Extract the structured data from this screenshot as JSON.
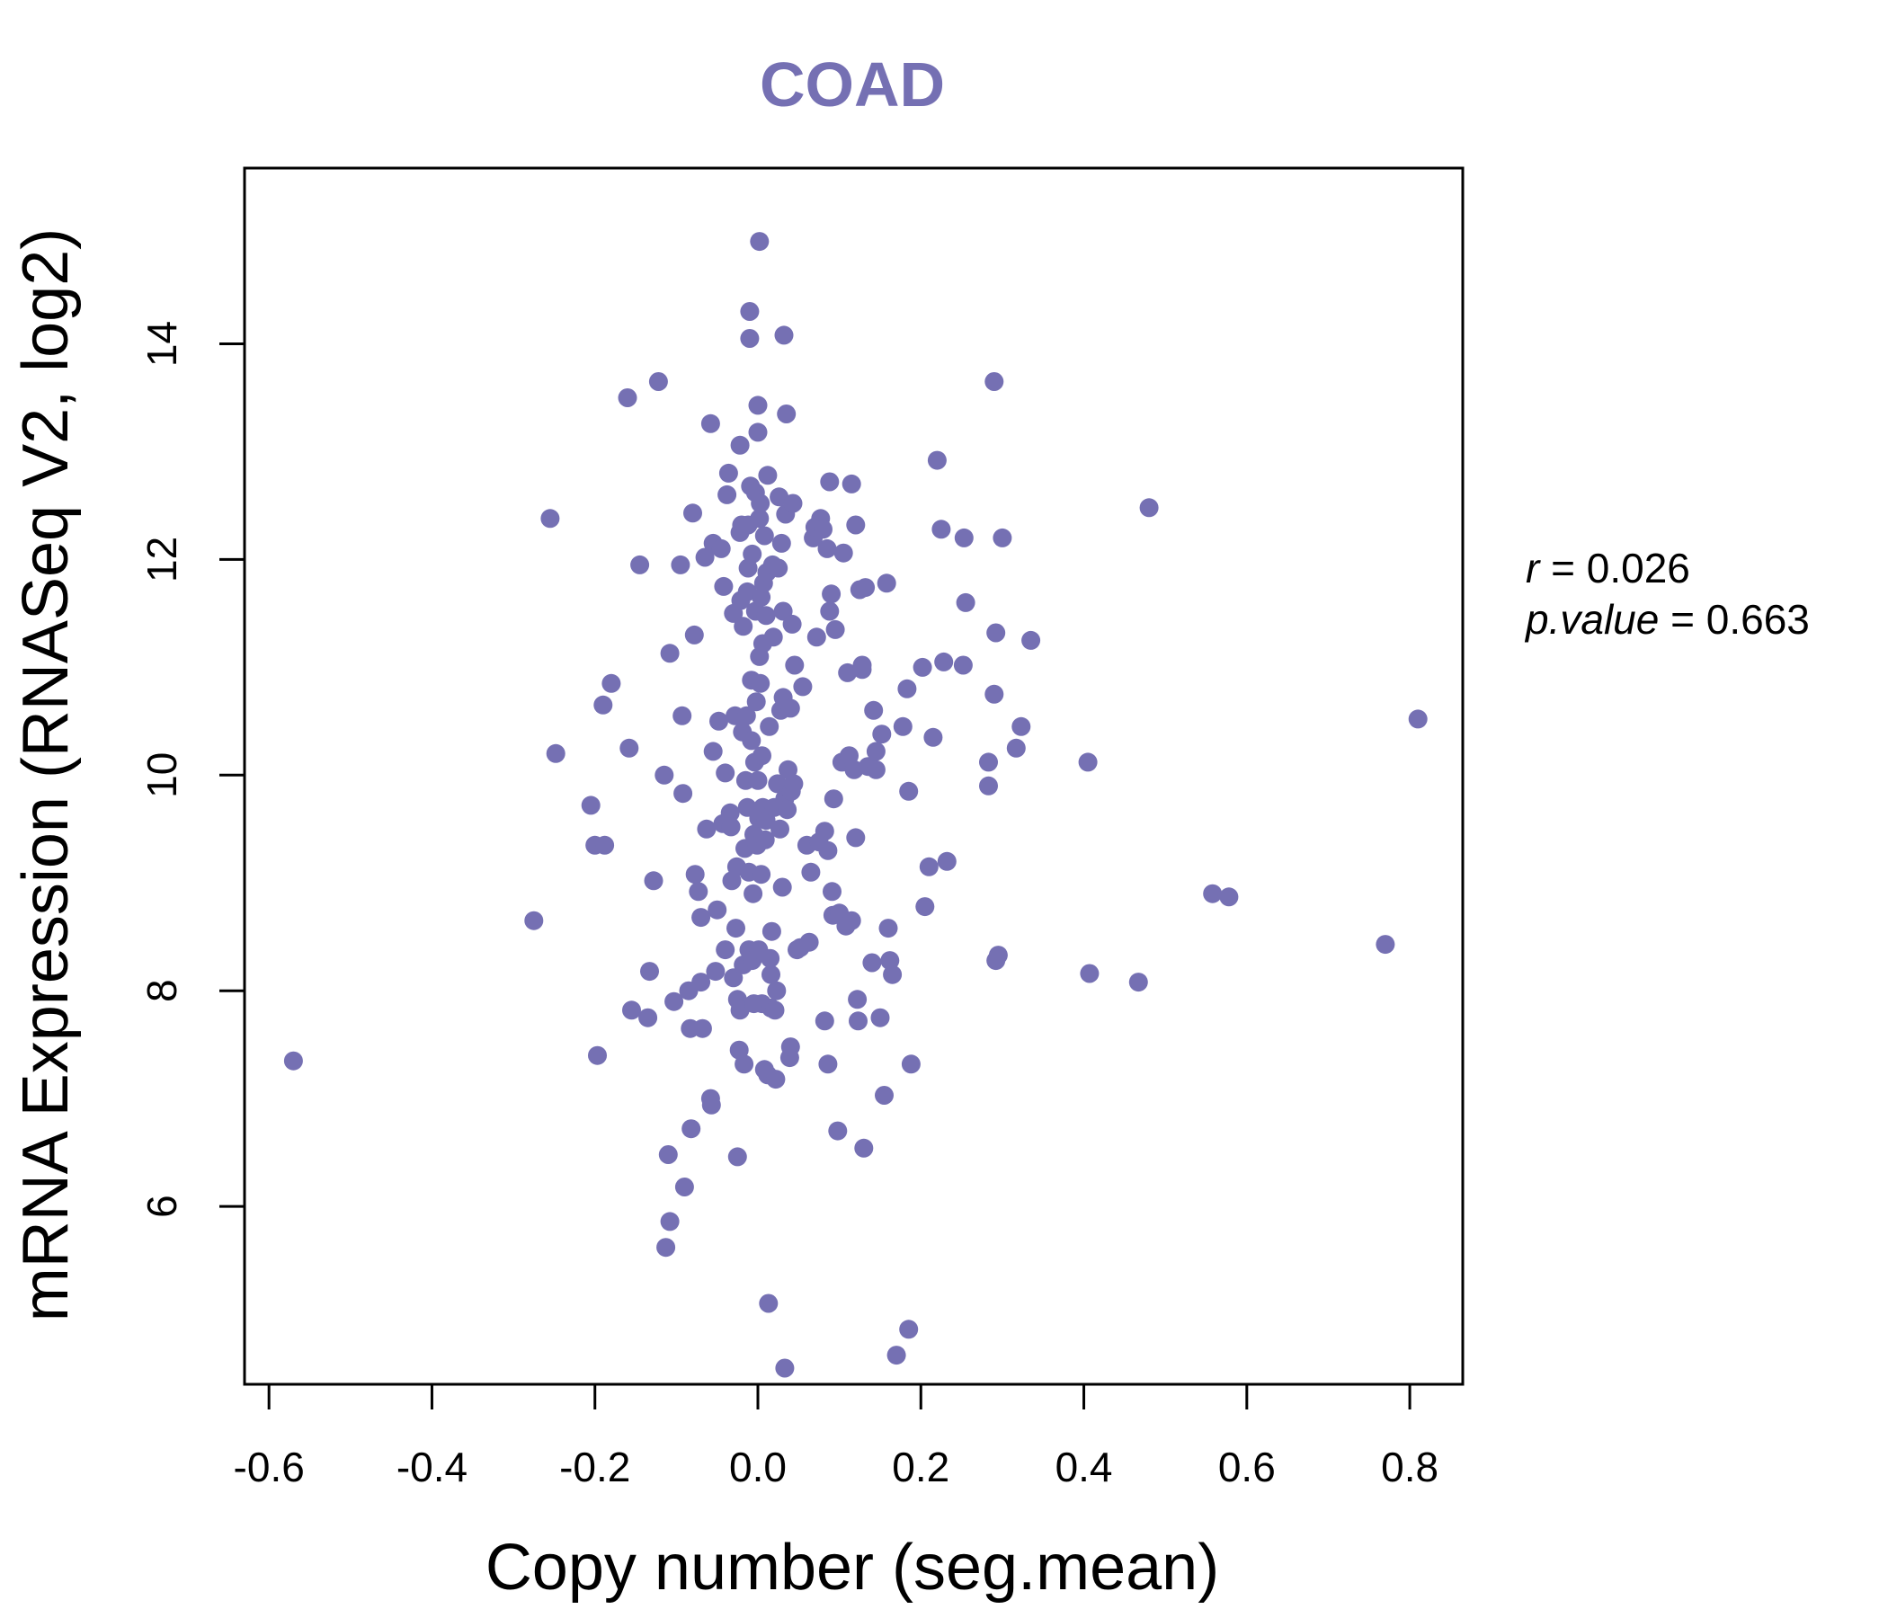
{
  "chart_data": {
    "type": "scatter",
    "title": "COAD",
    "xlabel": "Copy number (seg.mean)",
    "ylabel": "mRNA Expression (RNASeq V2, log2)",
    "xlim": [
      -0.63,
      0.865
    ],
    "ylim": [
      4.35,
      15.63
    ],
    "xticks": [
      -0.6,
      -0.4,
      -0.2,
      0.0,
      0.2,
      0.4,
      0.6,
      0.8
    ],
    "xtick_labels": [
      "-0.6",
      "-0.4",
      "-0.2",
      "0.0",
      "0.2",
      "0.4",
      "0.6",
      "0.8"
    ],
    "yticks": [
      6,
      8,
      10,
      12,
      14
    ],
    "ytick_labels": [
      "6",
      "8",
      "10",
      "12",
      "14"
    ],
    "grid": false,
    "colors": {
      "points": "#7570B3",
      "title": "#7570B3",
      "axis": "#000000"
    },
    "annotations": [
      {
        "label": "r",
        "text": " = 0.026"
      },
      {
        "label": "p.value",
        "text": " = 0.663"
      }
    ],
    "series": [
      {
        "points": [
          [
            -0.57,
            7.35
          ],
          [
            -0.275,
            8.65
          ],
          [
            -0.255,
            12.38
          ],
          [
            -0.248,
            10.2
          ],
          [
            -0.205,
            9.72
          ],
          [
            -0.2,
            9.35
          ],
          [
            -0.197,
            7.4
          ],
          [
            -0.19,
            10.65
          ],
          [
            -0.188,
            9.35
          ],
          [
            -0.18,
            10.85
          ],
          [
            -0.16,
            13.5
          ],
          [
            -0.158,
            10.25
          ],
          [
            -0.155,
            7.82
          ],
          [
            -0.145,
            11.95
          ],
          [
            -0.135,
            7.75
          ],
          [
            -0.133,
            8.18
          ],
          [
            -0.128,
            9.02
          ],
          [
            -0.122,
            13.65
          ],
          [
            -0.115,
            10.0
          ],
          [
            -0.113,
            5.62
          ],
          [
            -0.11,
            6.48
          ],
          [
            -0.108,
            5.86
          ],
          [
            -0.108,
            11.13
          ],
          [
            -0.103,
            7.9
          ],
          [
            -0.095,
            11.95
          ],
          [
            -0.093,
            10.55
          ],
          [
            -0.092,
            9.83
          ],
          [
            -0.09,
            6.18
          ],
          [
            -0.085,
            8.0
          ],
          [
            -0.083,
            7.65
          ],
          [
            -0.082,
            6.72
          ],
          [
            -0.08,
            12.43
          ],
          [
            -0.078,
            11.3
          ],
          [
            -0.077,
            9.08
          ],
          [
            -0.073,
            8.92
          ],
          [
            -0.07,
            8.08
          ],
          [
            -0.07,
            8.68
          ],
          [
            -0.068,
            7.65
          ],
          [
            -0.065,
            12.02
          ],
          [
            -0.063,
            9.5
          ],
          [
            -0.058,
            13.26
          ],
          [
            -0.058,
            7.0
          ],
          [
            -0.057,
            6.94
          ],
          [
            -0.055,
            10.22
          ],
          [
            -0.055,
            12.15
          ],
          [
            -0.052,
            8.18
          ],
          [
            -0.05,
            8.75
          ],
          [
            -0.048,
            10.5
          ],
          [
            -0.045,
            12.1
          ],
          [
            -0.043,
            9.55
          ],
          [
            -0.042,
            11.75
          ],
          [
            -0.04,
            8.38
          ],
          [
            -0.04,
            10.02
          ],
          [
            -0.038,
            12.6
          ],
          [
            -0.036,
            12.8
          ],
          [
            -0.034,
            9.65
          ],
          [
            -0.033,
            9.52
          ],
          [
            -0.032,
            9.02
          ],
          [
            -0.03,
            8.12
          ],
          [
            -0.03,
            11.5
          ],
          [
            -0.028,
            10.55
          ],
          [
            -0.027,
            8.58
          ],
          [
            -0.026,
            9.15
          ],
          [
            -0.025,
            7.92
          ],
          [
            -0.025,
            6.46
          ],
          [
            -0.023,
            7.45
          ],
          [
            -0.022,
            7.82
          ],
          [
            -0.022,
            13.06
          ],
          [
            -0.022,
            12.25
          ],
          [
            -0.021,
            11.62
          ],
          [
            -0.02,
            12.32
          ],
          [
            -0.019,
            10.4
          ],
          [
            -0.018,
            11.38
          ],
          [
            -0.018,
            8.24
          ],
          [
            -0.017,
            7.32
          ],
          [
            -0.016,
            9.32
          ],
          [
            -0.015,
            9.95
          ],
          [
            -0.014,
            10.55
          ],
          [
            -0.013,
            9.7
          ],
          [
            -0.013,
            11.7
          ],
          [
            -0.012,
            12.32
          ],
          [
            -0.012,
            11.92
          ],
          [
            -0.011,
            9.1
          ],
          [
            -0.011,
            8.38
          ],
          [
            -0.01,
            14.05
          ],
          [
            -0.01,
            14.3
          ],
          [
            -0.009,
            12.68
          ],
          [
            -0.008,
            10.88
          ],
          [
            -0.008,
            10.32
          ],
          [
            -0.007,
            8.28
          ],
          [
            -0.007,
            12.05
          ],
          [
            -0.006,
            8.9
          ],
          [
            -0.005,
            7.88
          ],
          [
            -0.005,
            9.45
          ],
          [
            -0.004,
            10.12
          ],
          [
            -0.003,
            11.52
          ],
          [
            -0.003,
            12.62
          ],
          [
            -0.002,
            10.68
          ],
          [
            -0.001,
            9.35
          ],
          [
            0.0,
            9.95
          ],
          [
            0.0,
            13.18
          ],
          [
            0.0,
            13.43
          ],
          [
            0.001,
            8.38
          ],
          [
            0.001,
            9.6
          ],
          [
            0.002,
            11.1
          ],
          [
            0.002,
            12.38
          ],
          [
            0.002,
            14.95
          ],
          [
            0.003,
            10.85
          ],
          [
            0.003,
            12.52
          ],
          [
            0.004,
            9.08
          ],
          [
            0.004,
            11.65
          ],
          [
            0.005,
            7.88
          ],
          [
            0.005,
            10.18
          ],
          [
            0.006,
            11.22
          ],
          [
            0.006,
            9.7
          ],
          [
            0.007,
            11.78
          ],
          [
            0.008,
            12.22
          ],
          [
            0.008,
            7.27
          ],
          [
            0.009,
            9.4
          ],
          [
            0.01,
            9.58
          ],
          [
            0.01,
            11.48
          ],
          [
            0.011,
            11.88
          ],
          [
            0.012,
            12.78
          ],
          [
            0.012,
            7.22
          ],
          [
            0.013,
            5.1
          ],
          [
            0.014,
            10.45
          ],
          [
            0.015,
            8.3
          ],
          [
            0.016,
            7.84
          ],
          [
            0.016,
            8.15
          ],
          [
            0.017,
            8.55
          ],
          [
            0.018,
            11.95
          ],
          [
            0.019,
            11.28
          ],
          [
            0.02,
            9.7
          ],
          [
            0.021,
            7.82
          ],
          [
            0.022,
            7.18
          ],
          [
            0.023,
            8.0
          ],
          [
            0.024,
            9.92
          ],
          [
            0.025,
            11.92
          ],
          [
            0.026,
            12.58
          ],
          [
            0.027,
            9.5
          ],
          [
            0.028,
            10.6
          ],
          [
            0.029,
            12.15
          ],
          [
            0.03,
            8.96
          ],
          [
            0.031,
            10.72
          ],
          [
            0.031,
            11.52
          ],
          [
            0.032,
            14.08
          ],
          [
            0.033,
            4.5
          ],
          [
            0.033,
            9.78
          ],
          [
            0.034,
            12.42
          ],
          [
            0.035,
            13.35
          ],
          [
            0.036,
            9.68
          ],
          [
            0.037,
            10.05
          ],
          [
            0.038,
            9.88
          ],
          [
            0.039,
            7.38
          ],
          [
            0.04,
            7.48
          ],
          [
            0.04,
            10.62
          ],
          [
            0.041,
            9.85
          ],
          [
            0.042,
            11.4
          ],
          [
            0.043,
            12.52
          ],
          [
            0.044,
            9.92
          ],
          [
            0.045,
            11.02
          ],
          [
            0.048,
            8.38
          ],
          [
            0.052,
            8.4
          ],
          [
            0.055,
            10.82
          ],
          [
            0.06,
            9.35
          ],
          [
            0.063,
            8.45
          ],
          [
            0.065,
            9.1
          ],
          [
            0.068,
            12.2
          ],
          [
            0.07,
            12.3
          ],
          [
            0.072,
            11.28
          ],
          [
            0.075,
            9.38
          ],
          [
            0.077,
            12.38
          ],
          [
            0.08,
            12.28
          ],
          [
            0.082,
            9.48
          ],
          [
            0.082,
            7.72
          ],
          [
            0.085,
            12.1
          ],
          [
            0.086,
            9.3
          ],
          [
            0.086,
            7.32
          ],
          [
            0.088,
            12.72
          ],
          [
            0.088,
            11.52
          ],
          [
            0.09,
            11.68
          ],
          [
            0.091,
            8.92
          ],
          [
            0.092,
            8.7
          ],
          [
            0.093,
            9.78
          ],
          [
            0.095,
            11.35
          ],
          [
            0.098,
            6.7
          ],
          [
            0.1,
            8.72
          ],
          [
            0.103,
            10.12
          ],
          [
            0.105,
            12.06
          ],
          [
            0.108,
            8.6
          ],
          [
            0.11,
            10.95
          ],
          [
            0.112,
            10.18
          ],
          [
            0.115,
            12.7
          ],
          [
            0.115,
            8.65
          ],
          [
            0.118,
            10.05
          ],
          [
            0.12,
            12.32
          ],
          [
            0.12,
            9.42
          ],
          [
            0.122,
            7.92
          ],
          [
            0.123,
            7.72
          ],
          [
            0.125,
            11.72
          ],
          [
            0.128,
            10.98
          ],
          [
            0.128,
            11.02
          ],
          [
            0.13,
            6.54
          ],
          [
            0.132,
            11.74
          ],
          [
            0.135,
            10.08
          ],
          [
            0.14,
            8.26
          ],
          [
            0.142,
            10.6
          ],
          [
            0.145,
            10.05
          ],
          [
            0.145,
            10.22
          ],
          [
            0.15,
            7.75
          ],
          [
            0.152,
            10.38
          ],
          [
            0.155,
            7.03
          ],
          [
            0.158,
            11.78
          ],
          [
            0.16,
            8.58
          ],
          [
            0.162,
            8.28
          ],
          [
            0.165,
            8.15
          ],
          [
            0.17,
            4.62
          ],
          [
            0.178,
            10.45
          ],
          [
            0.183,
            10.8
          ],
          [
            0.185,
            9.85
          ],
          [
            0.185,
            4.86
          ],
          [
            0.188,
            7.32
          ],
          [
            0.202,
            11.0
          ],
          [
            0.205,
            8.78
          ],
          [
            0.21,
            9.15
          ],
          [
            0.215,
            10.35
          ],
          [
            0.22,
            12.92
          ],
          [
            0.225,
            12.28
          ],
          [
            0.228,
            11.05
          ],
          [
            0.232,
            9.2
          ],
          [
            0.252,
            11.02
          ],
          [
            0.253,
            12.2
          ],
          [
            0.255,
            11.6
          ],
          [
            0.283,
            10.12
          ],
          [
            0.283,
            9.9
          ],
          [
            0.29,
            13.65
          ],
          [
            0.29,
            10.75
          ],
          [
            0.292,
            11.32
          ],
          [
            0.292,
            8.28
          ],
          [
            0.295,
            8.33
          ],
          [
            0.3,
            12.2
          ],
          [
            0.317,
            10.25
          ],
          [
            0.323,
            10.45
          ],
          [
            0.335,
            11.25
          ],
          [
            0.405,
            10.12
          ],
          [
            0.407,
            8.16
          ],
          [
            0.467,
            8.08
          ],
          [
            0.48,
            12.48
          ],
          [
            0.558,
            8.9
          ],
          [
            0.578,
            8.87
          ],
          [
            0.77,
            8.43
          ],
          [
            0.81,
            10.52
          ]
        ]
      }
    ]
  }
}
